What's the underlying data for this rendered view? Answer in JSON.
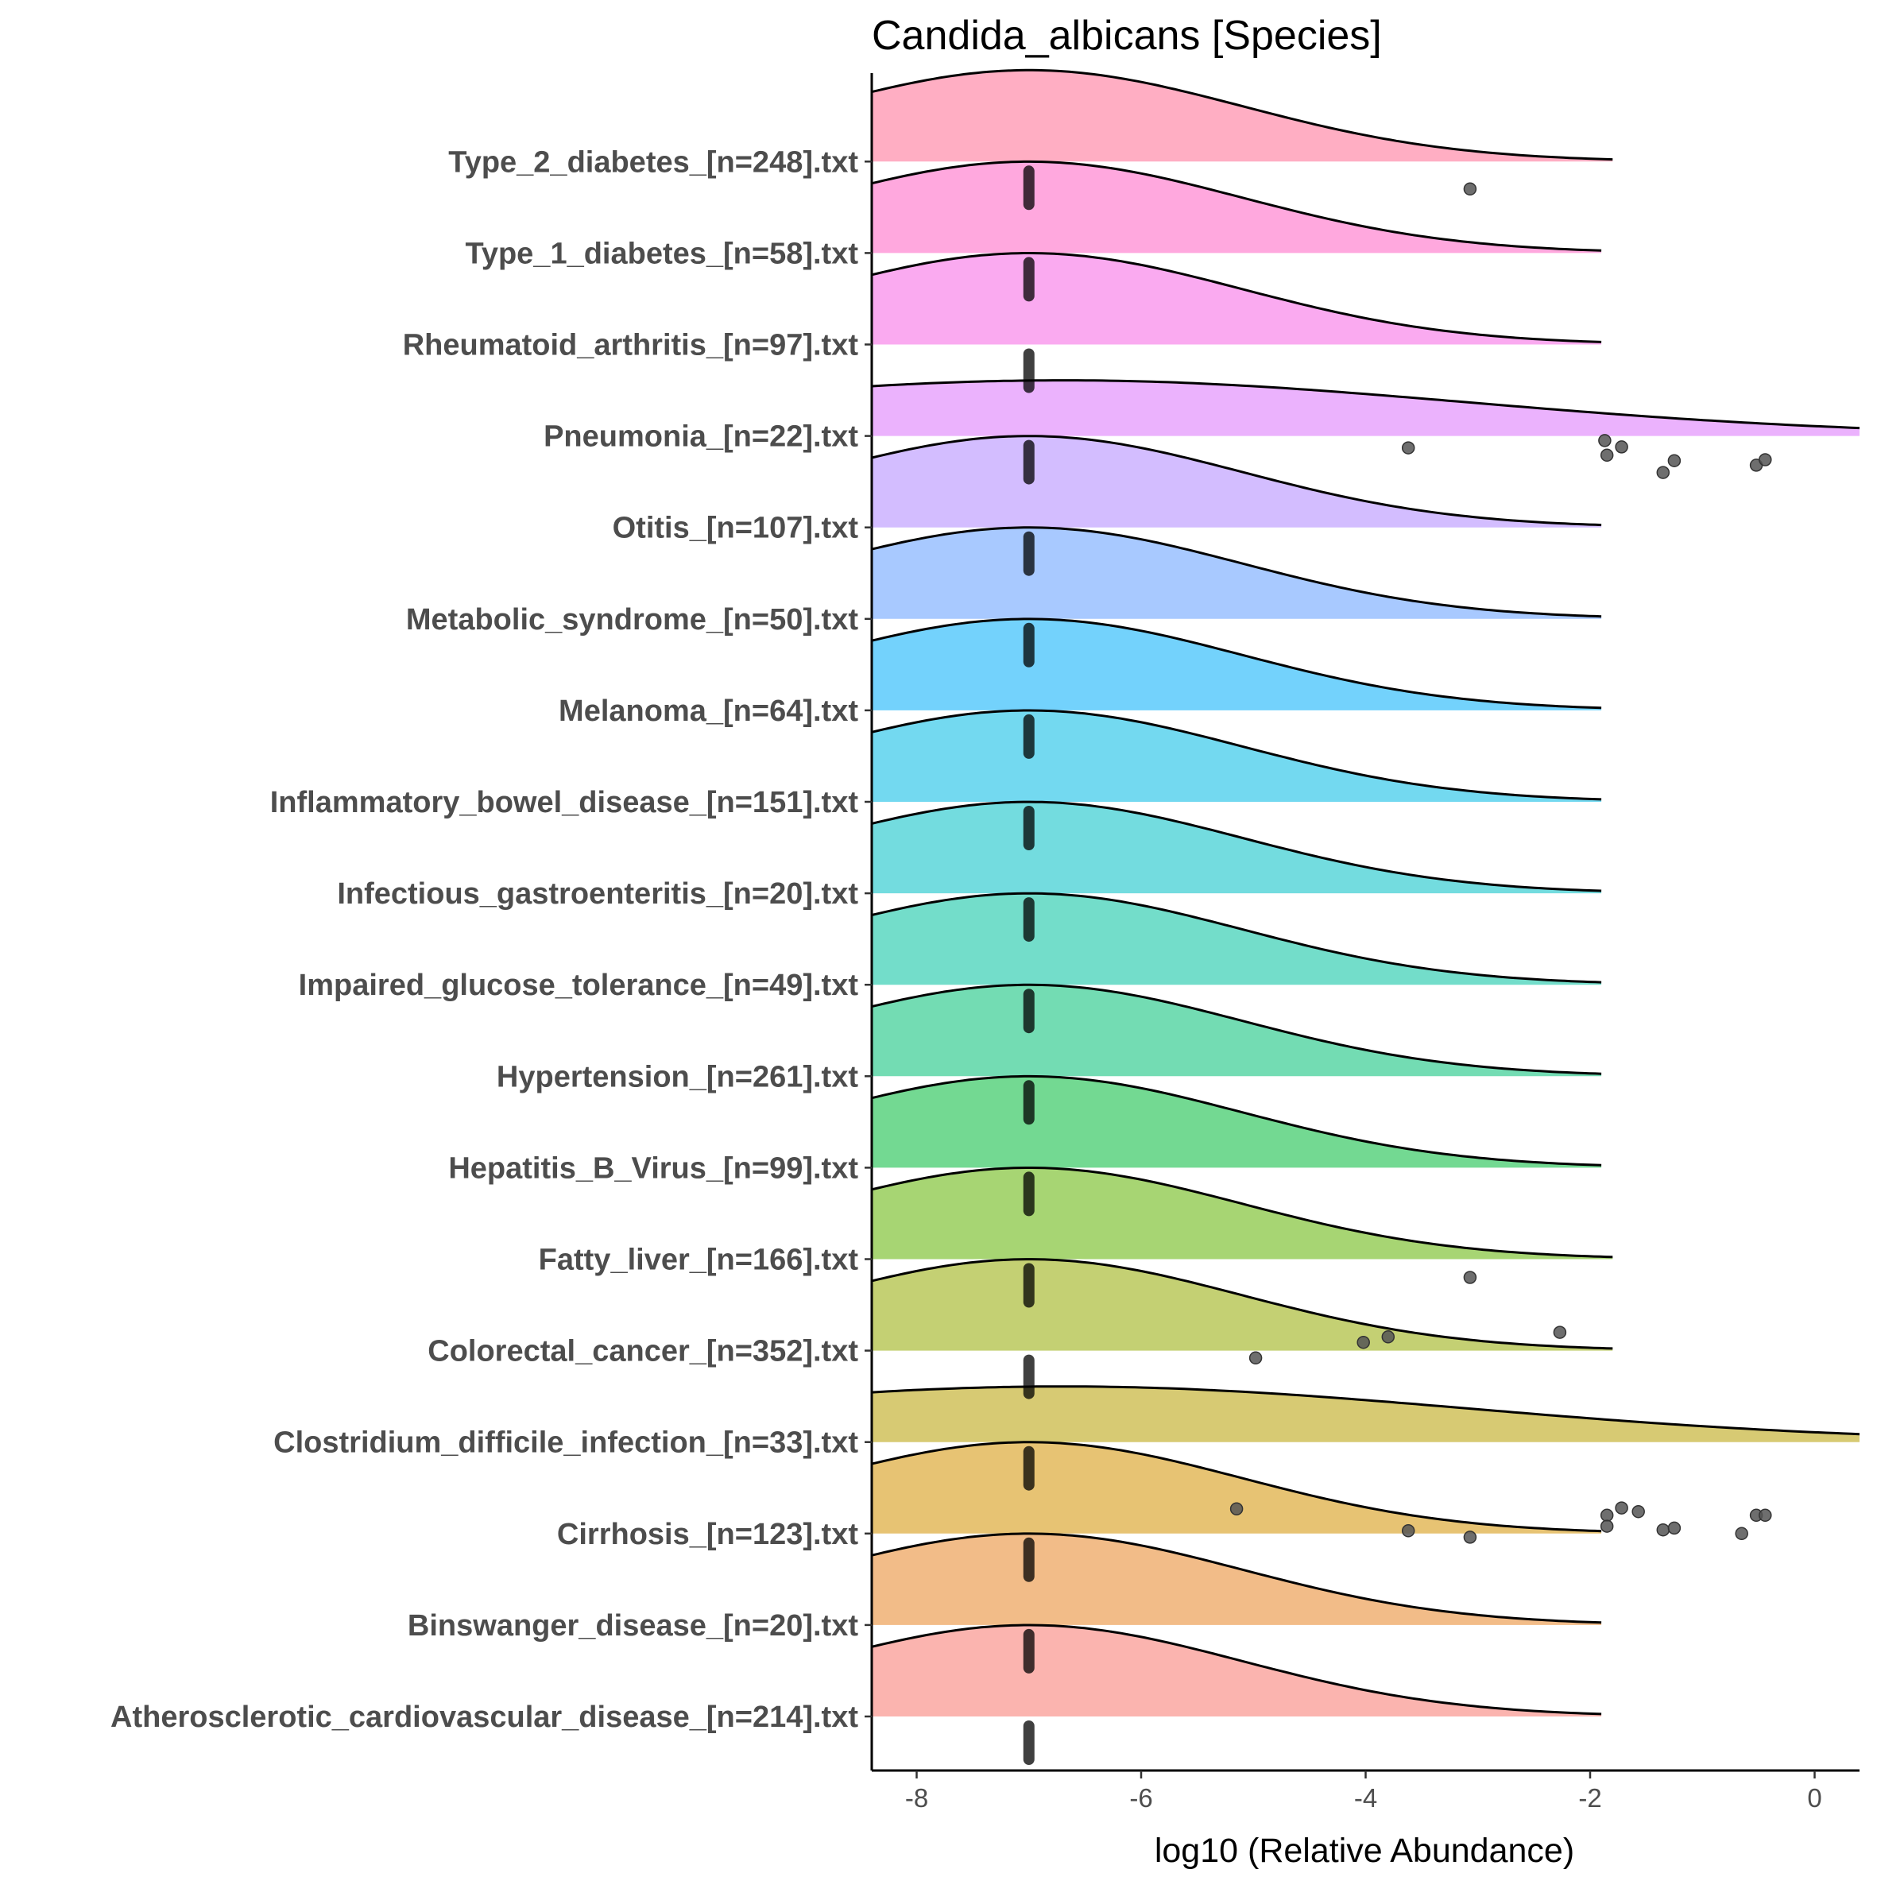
{
  "chart_data": {
    "type": "ridgeline",
    "title": "Candida_albicans [Species]",
    "xlabel": "log10 (Relative Abundance)",
    "ylabel": "",
    "xlim": [
      -8.4,
      0.4
    ],
    "x_ticks": [
      -8,
      -6,
      -4,
      -2,
      0
    ],
    "x_tick_labels": [
      "-8",
      "-6",
      "-4",
      "-2",
      "0"
    ],
    "grid": false,
    "legend": "none",
    "baseline_value": -7,
    "categories": [
      "Atherosclerotic_cardiovascular_disease_[n=214].txt",
      "Binswanger_disease_[n=20].txt",
      "Cirrhosis_[n=123].txt",
      "Clostridium_difficile_infection_[n=33].txt",
      "Colorectal_cancer_[n=352].txt",
      "Fatty_liver_[n=166].txt",
      "Hepatitis_B_Virus_[n=99].txt",
      "Hypertension_[n=261].txt",
      "Impaired_glucose_tolerance_[n=49].txt",
      "Infectious_gastroenteritis_[n=20].txt",
      "Inflammatory_bowel_disease_[n=151].txt",
      "Melanoma_[n=64].txt",
      "Metabolic_syndrome_[n=50].txt",
      "Otitis_[n=107].txt",
      "Pneumonia_[n=22].txt",
      "Rheumatoid_arthritis_[n=97].txt",
      "Type_1_diabetes_[n=58].txt",
      "Type_2_diabetes_[n=248].txt"
    ],
    "series": [
      {
        "category": "Atherosclerotic_cardiovascular_disease_[n=214].txt",
        "color": "#F8766D",
        "density": {
          "peak_x": -7.0,
          "sd": 1.9,
          "x_end": -1.9,
          "wide": false
        },
        "outliers": []
      },
      {
        "category": "Binswanger_disease_[n=20].txt",
        "color": "#E88526",
        "density": {
          "peak_x": -7.0,
          "sd": 1.9,
          "x_end": -1.9,
          "wide": false
        },
        "outliers": []
      },
      {
        "category": "Cirrhosis_[n=123].txt",
        "color": "#D39200",
        "density": {
          "peak_x": -7.0,
          "sd": 1.9,
          "x_end": -1.9,
          "wide": false
        },
        "outliers": [
          {
            "x": -5.15,
            "dy": 0.27
          },
          {
            "x": -1.85,
            "dy": 0.2
          },
          {
            "x": -1.85,
            "dy": 0.08
          },
          {
            "x": -1.72,
            "dy": 0.28
          },
          {
            "x": -1.57,
            "dy": 0.24
          },
          {
            "x": -1.35,
            "dy": 0.04
          },
          {
            "x": -1.25,
            "dy": 0.06
          },
          {
            "x": -0.52,
            "dy": 0.2
          },
          {
            "x": -0.44,
            "dy": 0.2
          },
          {
            "x": -0.65,
            "dy": 0.0
          },
          {
            "x": -3.62,
            "dy": 0.03
          },
          {
            "x": -3.07,
            "dy": -0.04
          }
        ]
      },
      {
        "category": "Clostridium_difficile_infection_[n=33].txt",
        "color": "#B79F00",
        "density": {
          "peak_x": -6.7,
          "sd": 3.6,
          "x_end": 0.4,
          "wide": true
        },
        "outliers": [
          {
            "x": -4.98,
            "dy": 0.92
          },
          {
            "x": -4.02,
            "dy": 1.09
          },
          {
            "x": -3.8,
            "dy": 1.15
          },
          {
            "x": -2.27,
            "dy": 1.2
          }
        ]
      },
      {
        "category": "Colorectal_cancer_[n=352].txt",
        "color": "#93AA00",
        "density": {
          "peak_x": -7.0,
          "sd": 1.9,
          "x_end": -1.8,
          "wide": false
        },
        "outliers": [
          {
            "x": -3.07,
            "dy": 0.8
          }
        ]
      },
      {
        "category": "Fatty_liver_[n=166].txt",
        "color": "#5EB300",
        "density": {
          "peak_x": -7.0,
          "sd": 1.9,
          "x_end": -1.8,
          "wide": false
        },
        "outliers": []
      },
      {
        "category": "Hepatitis_B_Virus_[n=99].txt",
        "color": "#00BA38",
        "density": {
          "peak_x": -7.0,
          "sd": 1.9,
          "x_end": -1.9,
          "wide": false
        },
        "outliers": []
      },
      {
        "category": "Hypertension_[n=261].txt",
        "color": "#00BF74",
        "density": {
          "peak_x": -7.0,
          "sd": 1.9,
          "x_end": -1.9,
          "wide": false
        },
        "outliers": []
      },
      {
        "category": "Impaired_glucose_tolerance_[n=49].txt",
        "color": "#00C19F",
        "density": {
          "peak_x": -7.0,
          "sd": 1.9,
          "x_end": -1.9,
          "wide": false
        },
        "outliers": []
      },
      {
        "category": "Infectious_gastroenteritis_[n=20].txt",
        "color": "#00BFC4",
        "density": {
          "peak_x": -7.0,
          "sd": 1.9,
          "x_end": -1.9,
          "wide": false
        },
        "outliers": []
      },
      {
        "category": "Inflammatory_bowel_disease_[n=151].txt",
        "color": "#00B9E3",
        "density": {
          "peak_x": -7.0,
          "sd": 1.9,
          "x_end": -1.9,
          "wide": false
        },
        "outliers": []
      },
      {
        "category": "Melanoma_[n=64].txt",
        "color": "#00ADFA",
        "density": {
          "peak_x": -7.0,
          "sd": 1.9,
          "x_end": -1.9,
          "wide": false
        },
        "outliers": []
      },
      {
        "category": "Metabolic_syndrome_[n=50].txt",
        "color": "#619CFF",
        "density": {
          "peak_x": -7.0,
          "sd": 1.9,
          "x_end": -1.9,
          "wide": false
        },
        "outliers": []
      },
      {
        "category": "Otitis_[n=107].txt",
        "color": "#AE87FF",
        "density": {
          "peak_x": -7.0,
          "sd": 1.9,
          "x_end": -1.9,
          "wide": false
        },
        "outliers": []
      },
      {
        "category": "Pneumonia_[n=22].txt",
        "color": "#DB72FB",
        "density": {
          "peak_x": -6.7,
          "sd": 3.6,
          "x_end": 0.4,
          "wide": true
        },
        "outliers": [
          {
            "x": -3.62,
            "dy": -0.13
          },
          {
            "x": -1.87,
            "dy": -0.05
          },
          {
            "x": -1.85,
            "dy": -0.21
          },
          {
            "x": -1.72,
            "dy": -0.12
          },
          {
            "x": -1.35,
            "dy": -0.4
          },
          {
            "x": -1.25,
            "dy": -0.27
          },
          {
            "x": -0.52,
            "dy": -0.32
          },
          {
            "x": -0.44,
            "dy": -0.26
          }
        ]
      },
      {
        "category": "Rheumatoid_arthritis_[n=97].txt",
        "color": "#F564E3",
        "density": {
          "peak_x": -7.0,
          "sd": 1.9,
          "x_end": -1.9,
          "wide": false
        },
        "outliers": []
      },
      {
        "category": "Type_1_diabetes_[n=58].txt",
        "color": "#FF61C3",
        "density": {
          "peak_x": -7.0,
          "sd": 1.9,
          "x_end": -1.9,
          "wide": false
        },
        "outliers": [
          {
            "x": -3.07,
            "dy": 0.7
          }
        ]
      },
      {
        "category": "Type_2_diabetes_[n=248].txt",
        "color": "#FF6C91",
        "density": {
          "peak_x": -7.0,
          "sd": 1.9,
          "x_end": -1.8,
          "wide": false
        },
        "outliers": []
      }
    ]
  }
}
